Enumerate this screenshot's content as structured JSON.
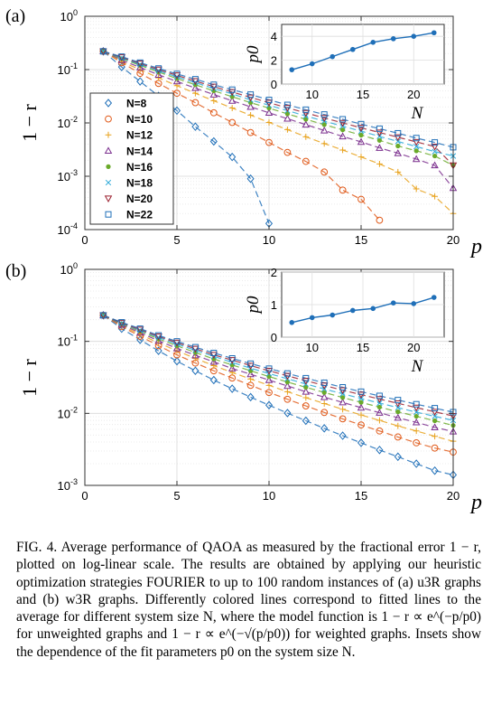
{
  "chart_data": [
    {
      "type": "scatter",
      "panel_label": "(a)",
      "xlabel": "p",
      "ylabel": "1 − r",
      "yscale": "log",
      "xlim": [
        0,
        20
      ],
      "ylim": [
        0.0001,
        1
      ],
      "x_ticks": [
        "0",
        "5",
        "10",
        "15",
        "20"
      ],
      "y_ticks": [
        "10^-4",
        "10^-3",
        "10^-2",
        "10^-1",
        "10^0"
      ],
      "grid": true,
      "legend": "lower-left",
      "series": [
        {
          "name": "N=8",
          "marker": "diamond",
          "color": "#1f6fb8",
          "x": [
            1,
            2,
            3,
            4,
            5,
            6,
            7,
            8,
            9,
            10,
            11,
            12,
            13,
            14,
            15,
            16,
            17,
            18,
            19,
            20
          ],
          "y": [
            0.22,
            0.112,
            0.06,
            0.032,
            0.017,
            0.0085,
            0.0045,
            0.0023,
            0.0009,
            0.00013,
            null,
            null,
            null,
            null,
            null,
            null,
            null,
            null,
            null,
            null
          ]
        },
        {
          "name": "N=10",
          "marker": "circle",
          "color": "#e05a1a",
          "x": [
            1,
            2,
            3,
            4,
            5,
            6,
            7,
            8,
            9,
            10,
            11,
            12,
            13,
            14,
            15,
            16,
            17,
            18,
            19,
            20
          ],
          "y": [
            0.22,
            0.135,
            0.085,
            0.055,
            0.036,
            0.024,
            0.0155,
            0.0102,
            0.0066,
            0.0043,
            0.0028,
            0.0019,
            0.0012,
            0.00055,
            0.00037,
            0.00015,
            null,
            null,
            null,
            null
          ]
        },
        {
          "name": "N=12",
          "marker": "plus",
          "color": "#e8a21c",
          "x": [
            1,
            2,
            3,
            4,
            5,
            6,
            7,
            8,
            9,
            10,
            11,
            12,
            13,
            14,
            15,
            16,
            17,
            18,
            19,
            20
          ],
          "y": [
            0.22,
            0.14,
            0.1,
            0.07,
            0.05,
            0.036,
            0.026,
            0.019,
            0.014,
            0.0102,
            0.0075,
            0.0055,
            0.0041,
            0.0031,
            0.0023,
            0.0017,
            0.0012,
            0.00058,
            0.00042,
            0.0002
          ]
        },
        {
          "name": "N=14",
          "marker": "triangle-up",
          "color": "#7b2f8e",
          "x": [
            1,
            2,
            3,
            4,
            5,
            6,
            7,
            8,
            9,
            10,
            11,
            12,
            13,
            14,
            15,
            16,
            17,
            18,
            19,
            20
          ],
          "y": [
            0.22,
            0.15,
            0.11,
            0.08,
            0.06,
            0.045,
            0.034,
            0.026,
            0.02,
            0.0155,
            0.012,
            0.0093,
            0.0072,
            0.0056,
            0.0044,
            0.0034,
            0.0027,
            0.0021,
            0.0016,
            0.0006
          ]
        },
        {
          "name": "N=16",
          "marker": "dot",
          "color": "#6aaa2a",
          "x": [
            1,
            2,
            3,
            4,
            5,
            6,
            7,
            8,
            9,
            10,
            11,
            12,
            13,
            14,
            15,
            16,
            17,
            18,
            19,
            20
          ],
          "y": [
            0.22,
            0.16,
            0.12,
            0.09,
            0.068,
            0.052,
            0.04,
            0.031,
            0.024,
            0.019,
            0.0148,
            0.0117,
            0.0093,
            0.0074,
            0.0059,
            0.0047,
            0.0037,
            0.003,
            0.0024,
            0.0016
          ]
        },
        {
          "name": "N=18",
          "marker": "x",
          "color": "#2aa8d8",
          "x": [
            1,
            2,
            3,
            4,
            5,
            6,
            7,
            8,
            9,
            10,
            11,
            12,
            13,
            14,
            15,
            16,
            17,
            18,
            19,
            20
          ],
          "y": [
            0.22,
            0.165,
            0.125,
            0.095,
            0.073,
            0.057,
            0.044,
            0.035,
            0.027,
            0.0215,
            0.017,
            0.0135,
            0.0108,
            0.0087,
            0.007,
            0.0056,
            0.0045,
            0.0036,
            0.0029,
            0.0024
          ]
        },
        {
          "name": "N=20",
          "marker": "triangle-down",
          "color": "#9b1f2e",
          "x": [
            1,
            2,
            3,
            4,
            5,
            6,
            7,
            8,
            9,
            10,
            11,
            12,
            13,
            14,
            15,
            16,
            17,
            18,
            19,
            20
          ],
          "y": [
            0.22,
            0.17,
            0.13,
            0.1,
            0.078,
            0.061,
            0.048,
            0.038,
            0.03,
            0.024,
            0.0192,
            0.0154,
            0.0124,
            0.01,
            0.0081,
            0.0066,
            0.0054,
            0.0044,
            0.0036,
            0.0016
          ]
        },
        {
          "name": "N=22",
          "marker": "square",
          "color": "#1f6fb8",
          "x": [
            1,
            2,
            3,
            4,
            5,
            6,
            7,
            8,
            9,
            10,
            11,
            12,
            13,
            14,
            15,
            16,
            17,
            18,
            19,
            20
          ],
          "y": [
            0.22,
            0.175,
            0.135,
            0.105,
            0.083,
            0.066,
            0.052,
            0.042,
            0.034,
            0.027,
            0.0218,
            0.0177,
            0.0144,
            0.0117,
            0.0095,
            0.0078,
            0.0064,
            0.0052,
            0.0043,
            0.0035
          ]
        }
      ],
      "inset": {
        "type": "line",
        "xlabel": "N",
        "ylabel": "p0",
        "xlim": [
          7,
          23
        ],
        "ylim": [
          0,
          5
        ],
        "x_ticks": [
          "10",
          "15",
          "20"
        ],
        "y_ticks": [
          "0",
          "2",
          "4"
        ],
        "color": "#1f6fb8",
        "x": [
          8,
          10,
          12,
          14,
          16,
          18,
          20,
          22
        ],
        "y": [
          1.2,
          1.7,
          2.3,
          2.9,
          3.5,
          3.8,
          4.0,
          4.3
        ]
      }
    },
    {
      "type": "scatter",
      "panel_label": "(b)",
      "xlabel": "p",
      "ylabel": "1 − r",
      "yscale": "log",
      "xlim": [
        0,
        20
      ],
      "ylim": [
        0.001,
        1
      ],
      "x_ticks": [
        "0",
        "5",
        "10",
        "15",
        "20"
      ],
      "y_ticks": [
        "10^-3",
        "10^-2",
        "10^-1",
        "10^0"
      ],
      "grid": true,
      "series": [
        {
          "name": "N=8",
          "marker": "diamond",
          "color": "#1f6fb8",
          "x": [
            1,
            2,
            3,
            4,
            5,
            6,
            7,
            8,
            9,
            10,
            11,
            12,
            13,
            14,
            15,
            16,
            17,
            18,
            19,
            20
          ],
          "y": [
            0.23,
            0.15,
            0.105,
            0.074,
            0.053,
            0.039,
            0.029,
            0.022,
            0.0168,
            0.013,
            0.0101,
            0.0079,
            0.0062,
            0.0049,
            0.0039,
            0.0031,
            0.0025,
            0.002,
            0.0016,
            0.0014
          ]
        },
        {
          "name": "N=10",
          "marker": "circle",
          "color": "#e05a1a",
          "x": [
            1,
            2,
            3,
            4,
            5,
            6,
            7,
            8,
            9,
            10,
            11,
            12,
            13,
            14,
            15,
            16,
            17,
            18,
            19,
            20
          ],
          "y": [
            0.23,
            0.16,
            0.118,
            0.087,
            0.065,
            0.05,
            0.039,
            0.031,
            0.0245,
            0.0195,
            0.0157,
            0.0127,
            0.0103,
            0.0084,
            0.0069,
            0.0057,
            0.0047,
            0.0039,
            0.0033,
            0.0029
          ]
        },
        {
          "name": "N=12",
          "marker": "plus",
          "color": "#e8a21c",
          "x": [
            1,
            2,
            3,
            4,
            5,
            6,
            7,
            8,
            9,
            10,
            11,
            12,
            13,
            14,
            15,
            16,
            17,
            18,
            19,
            20
          ],
          "y": [
            0.23,
            0.165,
            0.125,
            0.095,
            0.074,
            0.058,
            0.046,
            0.037,
            0.03,
            0.0245,
            0.02,
            0.0165,
            0.0137,
            0.0114,
            0.0095,
            0.008,
            0.0067,
            0.0057,
            0.0048,
            0.0041
          ]
        },
        {
          "name": "N=14",
          "marker": "triangle-up",
          "color": "#7b2f8e",
          "x": [
            1,
            2,
            3,
            4,
            5,
            6,
            7,
            8,
            9,
            10,
            11,
            12,
            13,
            14,
            15,
            16,
            17,
            18,
            19,
            20
          ],
          "y": [
            0.23,
            0.17,
            0.132,
            0.102,
            0.08,
            0.064,
            0.052,
            0.042,
            0.035,
            0.029,
            0.024,
            0.02,
            0.0168,
            0.0142,
            0.012,
            0.0102,
            0.0087,
            0.0075,
            0.0064,
            0.0056
          ]
        },
        {
          "name": "N=16",
          "marker": "dot",
          "color": "#6aaa2a",
          "x": [
            1,
            2,
            3,
            4,
            5,
            6,
            7,
            8,
            9,
            10,
            11,
            12,
            13,
            14,
            15,
            16,
            17,
            18,
            19,
            20
          ],
          "y": [
            0.23,
            0.175,
            0.138,
            0.108,
            0.087,
            0.07,
            0.057,
            0.047,
            0.039,
            0.0325,
            0.0272,
            0.023,
            0.0195,
            0.0166,
            0.0142,
            0.0122,
            0.0105,
            0.0091,
            0.0079,
            0.0068
          ]
        },
        {
          "name": "N=18",
          "marker": "x",
          "color": "#2aa8d8",
          "x": [
            1,
            2,
            3,
            4,
            5,
            6,
            7,
            8,
            9,
            10,
            11,
            12,
            13,
            14,
            15,
            16,
            17,
            18,
            19,
            20
          ],
          "y": [
            0.23,
            0.178,
            0.142,
            0.113,
            0.092,
            0.075,
            0.062,
            0.051,
            0.0425,
            0.0357,
            0.0302,
            0.0256,
            0.0218,
            0.0187,
            0.0161,
            0.0139,
            0.012,
            0.0104,
            0.0091,
            0.008
          ]
        },
        {
          "name": "N=20",
          "marker": "triangle-down",
          "color": "#9b1f2e",
          "x": [
            1,
            2,
            3,
            4,
            5,
            6,
            7,
            8,
            9,
            10,
            11,
            12,
            13,
            14,
            15,
            16,
            17,
            18,
            19,
            20
          ],
          "y": [
            0.23,
            0.181,
            0.146,
            0.117,
            0.096,
            0.079,
            0.065,
            0.055,
            0.046,
            0.039,
            0.0332,
            0.0284,
            0.0244,
            0.021,
            0.0182,
            0.0158,
            0.0138,
            0.012,
            0.0105,
            0.0092
          ]
        },
        {
          "name": "N=22",
          "marker": "square",
          "color": "#1f6fb8",
          "x": [
            1,
            2,
            3,
            4,
            5,
            6,
            7,
            8,
            9,
            10,
            11,
            12,
            13,
            14,
            15,
            16,
            17,
            18,
            19,
            20
          ],
          "y": [
            0.23,
            0.184,
            0.15,
            0.121,
            0.1,
            0.083,
            0.069,
            0.058,
            0.049,
            0.0418,
            0.0358,
            0.0308,
            0.0266,
            0.023,
            0.02,
            0.0175,
            0.0153,
            0.0134,
            0.0118,
            0.0104
          ]
        }
      ],
      "inset": {
        "type": "line",
        "xlabel": "N",
        "ylabel": "p0",
        "xlim": [
          7,
          23
        ],
        "ylim": [
          0,
          2
        ],
        "x_ticks": [
          "10",
          "15",
          "20"
        ],
        "y_ticks": [
          "0",
          "1",
          "2"
        ],
        "color": "#1f6fb8",
        "x": [
          8,
          10,
          12,
          14,
          16,
          18,
          20,
          22
        ],
        "y": [
          0.45,
          0.6,
          0.68,
          0.82,
          0.88,
          1.05,
          1.03,
          1.22
        ]
      }
    }
  ],
  "caption": {
    "label": "FIG. 4.",
    "line1": "Average performance of QAOA as measured by the fractional error 1 − r, plotted on log-linear scale. The results are obtained by applying our heuristic optimization strategies FOURIER to up to 100 random instances of (a) u3R graphs and (b) w3R graphs. Differently colored lines correspond to fitted lines to the average for different system size N, where the model function is ",
    "formula1": "1 − r ∝ e^(−p/p0)",
    "mid": " for unweighted graphs and ",
    "formula2": "1 − r ∝ e^(−√(p/p0))",
    "end": " for weighted graphs. Insets show the dependence of the fit parameters p0 on the system size N."
  }
}
